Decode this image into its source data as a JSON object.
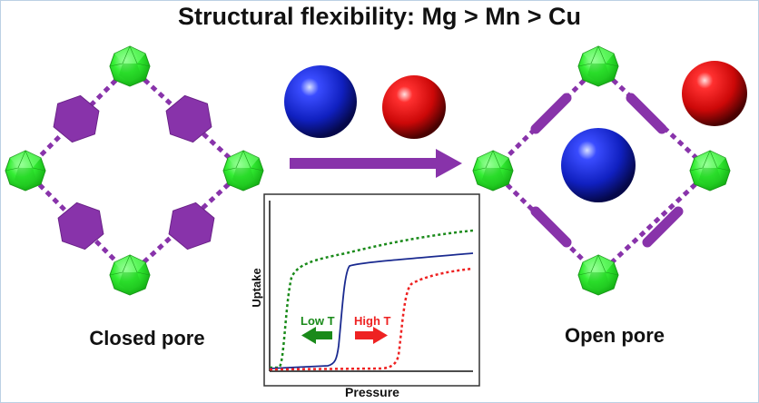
{
  "title": "Structural flexibility: Mg > Mn > Cu",
  "closed_pore_label": "Closed pore",
  "open_pore_label": "Open pore",
  "inset": {
    "xlabel": "Pressure",
    "ylabel": "Uptake",
    "low_t_label": "Low T",
    "high_t_label": "High T"
  },
  "colors": {
    "metal_node": "#22dd22",
    "linker": "#8833aa",
    "guest_blue": "#1020c0",
    "guest_red": "#dd1010",
    "arrow": "#8833aa",
    "low_t_curve": "#1a8a1a",
    "mid_curve": "#1a2a90",
    "high_t_curve": "#ee2222"
  }
}
